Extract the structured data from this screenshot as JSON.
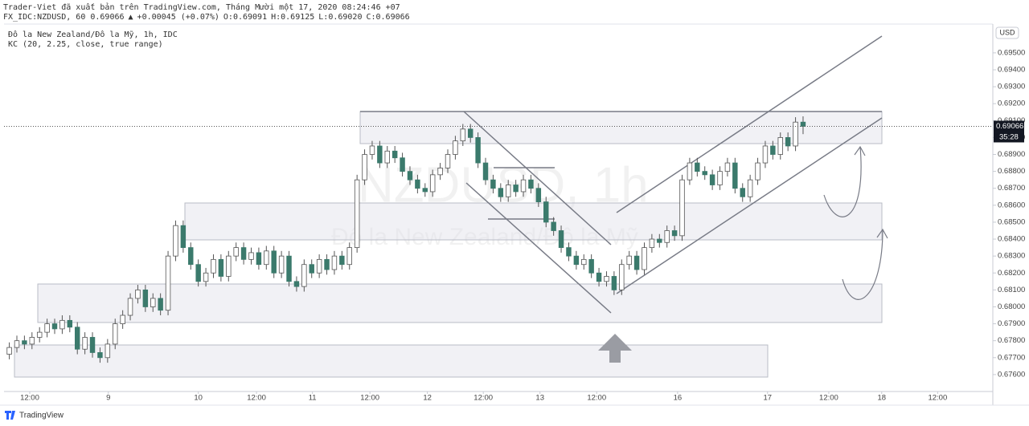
{
  "header": {
    "publisher": "Trader-Viet đã xuất bản trên TradingView.com, Tháng Mười một 17, 2020 08:24:46 +07",
    "symbol": "FX_IDC:NZDUSD, 60",
    "price": "0.69066",
    "arrow": "▲",
    "change": "+0.00045 (+0.07%)",
    "ohlc": [
      "O:0.69091",
      "H:0.69125",
      "L:0.69020",
      "C:0.69066"
    ],
    "legend": [
      "Đô la New Zealand/Đô la Mỹ, 1h, IDC",
      "KC (20, 2.25, close, true range)"
    ],
    "watermark": [
      "NZDUSD, 1h",
      "Đô la New Zealand/Đô la Mỹ"
    ],
    "currency": "USD",
    "brand": "TradingView"
  },
  "chart_data": {
    "type": "candlestick",
    "up_color": "#ffffff",
    "down_color": "#3b7a6c",
    "wick_color": "#555555",
    "open": [
      0.6772,
      0.6776,
      0.678,
      0.6778,
      0.6782,
      0.6785,
      0.679,
      0.6787,
      0.6792,
      0.6788,
      0.6775,
      0.6782,
      0.6773,
      0.677,
      0.6778,
      0.679,
      0.6795,
      0.6805,
      0.681,
      0.68,
      0.6805,
      0.6798,
      0.683,
      0.6848,
      0.6835,
      0.6825,
      0.6815,
      0.682,
      0.6828,
      0.6818,
      0.683,
      0.6835,
      0.6828,
      0.6832,
      0.6825,
      0.6833,
      0.682,
      0.683,
      0.6815,
      0.6812,
      0.6825,
      0.682,
      0.6828,
      0.6822,
      0.683,
      0.6825,
      0.6835,
      0.6875,
      0.689,
      0.6895,
      0.6885,
      0.6892,
      0.6888,
      0.688,
      0.6875,
      0.687,
      0.6868,
      0.6878,
      0.6882,
      0.689,
      0.6898,
      0.6905,
      0.69,
      0.6885,
      0.6875,
      0.687,
      0.6865,
      0.6872,
      0.6868,
      0.6875,
      0.687,
      0.6862,
      0.685,
      0.6845,
      0.6835,
      0.683,
      0.6825,
      0.6828,
      0.682,
      0.6815,
      0.6818,
      0.681,
      0.6825,
      0.683,
      0.6822,
      0.6835,
      0.684,
      0.6838,
      0.6845,
      0.6842,
      0.6875,
      0.6885,
      0.688,
      0.6878,
      0.6872,
      0.688,
      0.6885,
      0.687,
      0.6865,
      0.6875,
      0.6885,
      0.6895,
      0.689,
      0.69,
      0.6895,
      0.69091
    ],
    "high": [
      0.6779,
      0.6783,
      0.6783,
      0.6785,
      0.6788,
      0.6793,
      0.6793,
      0.6795,
      0.6795,
      0.6791,
      0.6785,
      0.6785,
      0.6776,
      0.6781,
      0.6793,
      0.6798,
      0.6808,
      0.6813,
      0.6813,
      0.6808,
      0.6808,
      0.6833,
      0.6851,
      0.6851,
      0.6838,
      0.6828,
      0.6823,
      0.6831,
      0.6831,
      0.6833,
      0.6838,
      0.6838,
      0.6835,
      0.6835,
      0.6836,
      0.6836,
      0.6833,
      0.6833,
      0.6818,
      0.6828,
      0.6828,
      0.6831,
      0.6831,
      0.6833,
      0.6833,
      0.6838,
      0.6878,
      0.6893,
      0.6898,
      0.6898,
      0.6895,
      0.6895,
      0.6891,
      0.6883,
      0.6878,
      0.6873,
      0.6881,
      0.6885,
      0.6893,
      0.6901,
      0.6908,
      0.6908,
      0.6903,
      0.6888,
      0.6878,
      0.6873,
      0.6875,
      0.6875,
      0.6878,
      0.6878,
      0.6873,
      0.6865,
      0.6853,
      0.6848,
      0.6838,
      0.6833,
      0.6831,
      0.6831,
      0.6823,
      0.6821,
      0.6821,
      0.6828,
      0.6833,
      0.6833,
      0.6838,
      0.6843,
      0.6843,
      0.6848,
      0.6848,
      0.6878,
      0.6888,
      0.6888,
      0.6883,
      0.6881,
      0.6883,
      0.6888,
      0.6888,
      0.6873,
      0.6878,
      0.6888,
      0.6898,
      0.6898,
      0.6903,
      0.6903,
      0.6912,
      0.69125
    ],
    "low": [
      0.6769,
      0.6773,
      0.6775,
      0.6775,
      0.6779,
      0.6782,
      0.6784,
      0.6784,
      0.6785,
      0.6772,
      0.6772,
      0.677,
      0.6767,
      0.6767,
      0.6775,
      0.6787,
      0.6792,
      0.6802,
      0.6797,
      0.6797,
      0.6795,
      0.6795,
      0.6827,
      0.6832,
      0.6822,
      0.6812,
      0.6812,
      0.6817,
      0.6815,
      0.6815,
      0.6827,
      0.6825,
      0.6825,
      0.6822,
      0.6822,
      0.6817,
      0.6817,
      0.6812,
      0.6809,
      0.6809,
      0.6817,
      0.6817,
      0.6819,
      0.6819,
      0.6822,
      0.6822,
      0.6832,
      0.6872,
      0.6887,
      0.6882,
      0.6882,
      0.6885,
      0.6877,
      0.6872,
      0.6867,
      0.6865,
      0.6865,
      0.6875,
      0.6879,
      0.6887,
      0.6895,
      0.6897,
      0.6882,
      0.6872,
      0.6867,
      0.6862,
      0.6862,
      0.6865,
      0.6865,
      0.6867,
      0.6859,
      0.6847,
      0.6842,
      0.6832,
      0.6827,
      0.6822,
      0.6822,
      0.6817,
      0.6812,
      0.6812,
      0.6807,
      0.6807,
      0.6822,
      0.6819,
      0.6819,
      0.6832,
      0.6835,
      0.6835,
      0.6839,
      0.6839,
      0.6872,
      0.6877,
      0.6875,
      0.6869,
      0.6869,
      0.6877,
      0.6867,
      0.6862,
      0.6862,
      0.6872,
      0.6882,
      0.6887,
      0.6887,
      0.6892,
      0.6892,
      0.6902
    ],
    "close": [
      0.6776,
      0.678,
      0.6778,
      0.6782,
      0.6785,
      0.679,
      0.6787,
      0.6792,
      0.6788,
      0.6775,
      0.6782,
      0.6773,
      0.677,
      0.6778,
      0.679,
      0.6795,
      0.6805,
      0.681,
      0.68,
      0.6805,
      0.6798,
      0.683,
      0.6848,
      0.6835,
      0.6825,
      0.6815,
      0.682,
      0.6828,
      0.6818,
      0.683,
      0.6835,
      0.6828,
      0.6832,
      0.6825,
      0.6833,
      0.682,
      0.683,
      0.6815,
      0.6812,
      0.6825,
      0.682,
      0.6828,
      0.6822,
      0.683,
      0.6825,
      0.6835,
      0.6875,
      0.689,
      0.6895,
      0.6885,
      0.6892,
      0.6888,
      0.688,
      0.6875,
      0.687,
      0.6868,
      0.6878,
      0.6882,
      0.689,
      0.6898,
      0.6905,
      0.69,
      0.6885,
      0.6875,
      0.687,
      0.6865,
      0.6872,
      0.6868,
      0.6875,
      0.687,
      0.6862,
      0.685,
      0.6845,
      0.6835,
      0.683,
      0.6825,
      0.6828,
      0.682,
      0.6815,
      0.6818,
      0.681,
      0.6825,
      0.683,
      0.6822,
      0.6835,
      0.684,
      0.6838,
      0.6845,
      0.6842,
      0.6875,
      0.6885,
      0.688,
      0.6878,
      0.6872,
      0.688,
      0.6885,
      0.687,
      0.6865,
      0.6875,
      0.6885,
      0.6895,
      0.689,
      0.69,
      0.6895,
      0.69091,
      0.69066
    ],
    "xlim": [
      -0.7,
      130.1
    ],
    "xticks": [
      {
        "value": 2.7,
        "label": "12:00"
      },
      {
        "value": 13.1,
        "label": "9"
      },
      {
        "value": 25.0,
        "label": "10"
      },
      {
        "value": 32.7,
        "label": "12:00"
      },
      {
        "value": 40.1,
        "label": "11"
      },
      {
        "value": 47.7,
        "label": "12:00"
      },
      {
        "value": 55.3,
        "label": "12"
      },
      {
        "value": 62.7,
        "label": "12:00"
      },
      {
        "value": 70.2,
        "label": "13"
      },
      {
        "value": 77.7,
        "label": "12:00"
      },
      {
        "value": 88.4,
        "label": "16"
      },
      {
        "value": 100.3,
        "label": "17"
      },
      {
        "value": 108.4,
        "label": "12:00"
      },
      {
        "value": 115.4,
        "label": "18"
      },
      {
        "value": 122.8,
        "label": "12:00"
      }
    ],
    "ylim": [
      0.675,
      0.6967
    ],
    "yticks": [
      {
        "value": 0.676,
        "label": "0.67600"
      },
      {
        "value": 0.677,
        "label": "0.67700"
      },
      {
        "value": 0.678,
        "label": "0.67800"
      },
      {
        "value": 0.679,
        "label": "0.67900"
      },
      {
        "value": 0.68,
        "label": "0.68000"
      },
      {
        "value": 0.681,
        "label": "0.68100"
      },
      {
        "value": 0.682,
        "label": "0.68200"
      },
      {
        "value": 0.683,
        "label": "0.68300"
      },
      {
        "value": 0.684,
        "label": "0.68400"
      },
      {
        "value": 0.685,
        "label": "0.68500"
      },
      {
        "value": 0.686,
        "label": "0.68600"
      },
      {
        "value": 0.687,
        "label": "0.68700"
      },
      {
        "value": 0.688,
        "label": "0.68800"
      },
      {
        "value": 0.689,
        "label": "0.68900"
      },
      {
        "value": 0.69,
        "label": "0.69000"
      },
      {
        "value": 0.691,
        "label": "0.69100"
      },
      {
        "value": 0.692,
        "label": "0.69200"
      },
      {
        "value": 0.693,
        "label": "0.69300"
      },
      {
        "value": 0.694,
        "label": "0.69400"
      },
      {
        "value": 0.695,
        "label": "0.69500"
      }
    ],
    "last_price": {
      "value": 0.69066,
      "label": "0.69066"
    },
    "countdown": "35:28"
  }
}
